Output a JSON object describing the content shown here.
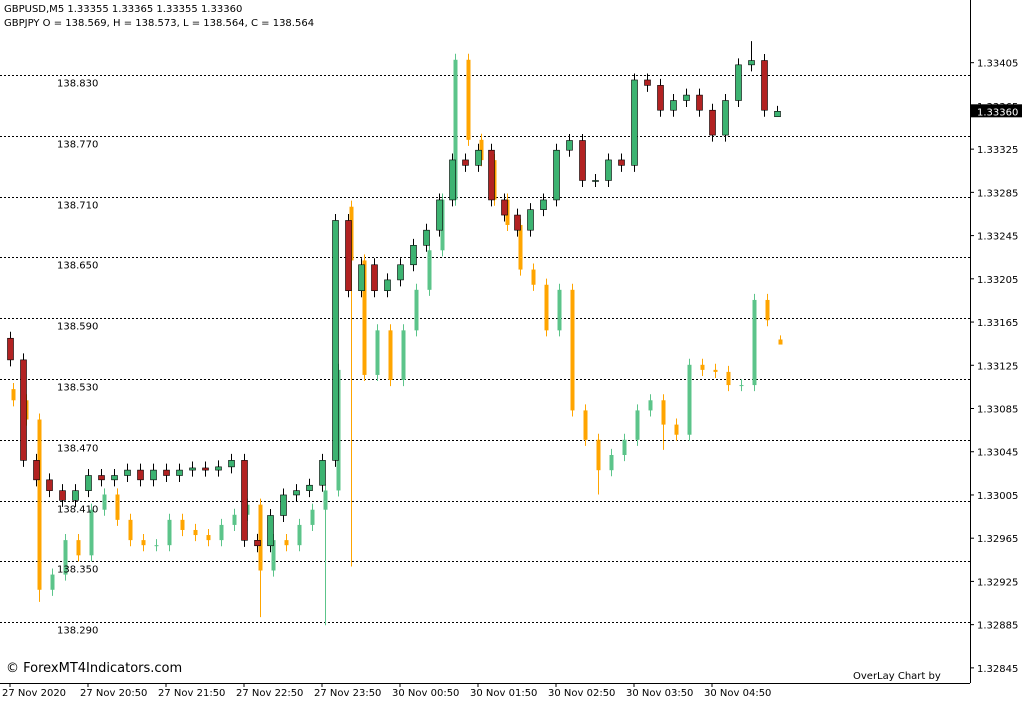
{
  "chart_data": {
    "type": "candlestick",
    "title": "GBPUSD,M5  1.33355 1.33365 1.33355 1.33360",
    "subtitle": "GBPJPY O = 138.569, H = 138.573, L = 138.564, C = 138.564",
    "credit": "© ForexMT4Indicators.com",
    "indicator": "OverLay Chart by",
    "current_price": {
      "value": 1.3336,
      "label": "1.33360"
    },
    "categories": [
      "27 Nov 2020",
      null,
      null,
      null,
      null,
      null,
      "27 Nov 20:50",
      null,
      null,
      null,
      null,
      null,
      "27 Nov 21:50",
      null,
      null,
      null,
      null,
      null,
      "27 Nov 22:50",
      null,
      null,
      null,
      null,
      null,
      "27 Nov 23:50",
      null,
      null,
      null,
      null,
      null,
      "30 Nov 00:50",
      null,
      null,
      null,
      null,
      null,
      "30 Nov 01:50",
      null,
      null,
      null,
      null,
      null,
      "30 Nov 02:50",
      null,
      null,
      null,
      null,
      null,
      "30 Nov 03:50",
      null,
      null,
      null,
      null,
      null,
      "30 Nov 04:50",
      null,
      null,
      null,
      null,
      null
    ],
    "ylim": [
      1.32831,
      1.33463
    ],
    "yticks": [
      1.33405,
      1.33365,
      1.33325,
      1.33285,
      1.33245,
      1.33205,
      1.33165,
      1.33125,
      1.33085,
      1.33045,
      1.33005,
      1.32965,
      1.32925,
      1.32885,
      1.32845
    ],
    "y2lim": [
      138.23,
      138.904
    ],
    "y2ticks": [
      {
        "value": 138.83,
        "label": "138.830"
      },
      {
        "value": 138.77,
        "label": "138.770"
      },
      {
        "value": 138.71,
        "label": "138.710"
      },
      {
        "value": 138.65,
        "label": "138.650"
      },
      {
        "value": 138.59,
        "label": "138.590"
      },
      {
        "value": 138.53,
        "label": "138.530"
      },
      {
        "value": 138.47,
        "label": "138.470"
      },
      {
        "value": 138.41,
        "label": "138.410"
      },
      {
        "value": 138.35,
        "label": "138.350"
      },
      {
        "value": 138.29,
        "label": "138.290"
      }
    ],
    "series": [
      {
        "up_color": "#3cb371",
        "down_color": "#b22222",
        "open": [
          1.3315,
          1.3313,
          1.33037,
          1.33019,
          1.33009,
          1.33,
          1.33009,
          1.33023,
          1.33019,
          1.33023,
          1.33028,
          1.33019,
          1.33028,
          1.33023,
          1.33028,
          1.3303,
          1.33028,
          1.33031,
          1.33037,
          1.32963,
          1.32958,
          1.32986,
          1.33005,
          1.33009,
          1.33014,
          1.33037,
          1.33259,
          1.33194,
          1.33218,
          1.33194,
          1.33204,
          1.33218,
          1.33236,
          1.3325,
          1.33278,
          1.33315,
          1.3331,
          1.33324,
          1.33278,
          1.33264,
          1.3325,
          1.33269,
          1.33278,
          1.33324,
          1.33333,
          1.33296,
          1.33296,
          1.33315,
          1.3331,
          1.33389,
          1.33384,
          1.33361,
          1.3337,
          1.33375,
          1.33361,
          1.33338,
          1.3337,
          1.33403,
          1.33407,
          1.33355
        ],
        "high": [
          1.33156,
          1.33136,
          1.33043,
          1.33025,
          1.33015,
          1.33015,
          1.33029,
          1.33029,
          1.33029,
          1.33034,
          1.33034,
          1.33034,
          1.33034,
          1.33034,
          1.33036,
          1.33036,
          1.33037,
          1.33043,
          1.33043,
          1.32969,
          1.32992,
          1.33011,
          1.33015,
          1.3302,
          1.33043,
          1.33265,
          1.33265,
          1.33224,
          1.33224,
          1.3321,
          1.33224,
          1.33242,
          1.33256,
          1.33284,
          1.33321,
          1.33321,
          1.3333,
          1.3333,
          1.33284,
          1.3327,
          1.33275,
          1.33284,
          1.3333,
          1.33339,
          1.33339,
          1.33302,
          1.33321,
          1.33321,
          1.33395,
          1.33395,
          1.3339,
          1.33376,
          1.33381,
          1.33381,
          1.33367,
          1.33376,
          1.33409,
          1.33425,
          1.33413,
          1.33365
        ],
        "low": [
          1.33124,
          1.33031,
          1.33013,
          1.33003,
          1.32994,
          1.32994,
          1.33003,
          1.33013,
          1.33013,
          1.33017,
          1.33013,
          1.33013,
          1.33017,
          1.33017,
          1.33022,
          1.33022,
          1.33022,
          1.33025,
          1.32957,
          1.32952,
          1.32952,
          1.3298,
          1.32999,
          1.33003,
          1.33008,
          1.33031,
          1.33188,
          1.33188,
          1.33188,
          1.33188,
          1.33198,
          1.33212,
          1.3323,
          1.33244,
          1.33272,
          1.33304,
          1.33304,
          1.33272,
          1.33258,
          1.33244,
          1.33244,
          1.33263,
          1.33272,
          1.33318,
          1.3329,
          1.3329,
          1.3329,
          1.33304,
          1.33304,
          1.33378,
          1.33355,
          1.33355,
          1.33364,
          1.33355,
          1.33332,
          1.33332,
          1.33364,
          1.33397,
          1.33355,
          1.33355
        ],
        "close": [
          1.3313,
          1.33037,
          1.33019,
          1.33009,
          1.33,
          1.33009,
          1.33023,
          1.33019,
          1.33023,
          1.33028,
          1.33019,
          1.33028,
          1.33023,
          1.33028,
          1.3303,
          1.33028,
          1.33031,
          1.33037,
          1.32963,
          1.32958,
          1.32986,
          1.33005,
          1.33009,
          1.33014,
          1.33037,
          1.33259,
          1.33194,
          1.33218,
          1.33194,
          1.33204,
          1.33218,
          1.33236,
          1.3325,
          1.33278,
          1.33315,
          1.3331,
          1.33324,
          1.33278,
          1.33264,
          1.3325,
          1.33269,
          1.33278,
          1.33324,
          1.33333,
          1.33296,
          1.33296,
          1.33315,
          1.3331,
          1.33389,
          1.33384,
          1.33361,
          1.3337,
          1.33375,
          1.33361,
          1.33338,
          1.3337,
          1.33403,
          1.33407,
          1.33361,
          1.3336
        ]
      },
      {
        "axis": "y2",
        "up_color": "#5cc48a",
        "down_color": "#ffa500",
        "open": [
          138.52,
          138.509,
          138.49,
          138.322,
          138.337,
          138.371,
          138.356,
          138.401,
          138.416,
          138.391,
          138.371,
          138.366,
          138.366,
          138.391,
          138.381,
          138.376,
          138.371,
          138.386,
          138.396,
          138.406,
          138.341,
          138.371,
          138.366,
          138.386,
          138.401,
          138.42,
          138.7,
          138.647,
          138.534,
          138.578,
          138.529,
          138.578,
          138.618,
          138.657,
          138.707,
          138.845,
          138.766,
          138.746,
          138.707,
          138.682,
          138.638,
          138.623,
          138.578,
          138.618,
          138.499,
          138.47,
          138.44,
          138.455,
          138.47,
          138.499,
          138.509,
          138.485,
          138.475,
          138.544,
          138.539,
          138.537,
          138.524,
          138.524,
          138.608,
          138.569
        ],
        "high": [
          138.526,
          138.515,
          138.496,
          138.343,
          138.377,
          138.377,
          138.407,
          138.422,
          138.422,
          138.397,
          138.377,
          138.372,
          138.397,
          138.397,
          138.387,
          138.382,
          138.392,
          138.402,
          138.412,
          138.412,
          138.377,
          138.377,
          138.392,
          138.407,
          138.426,
          138.545,
          138.706,
          138.653,
          138.584,
          138.584,
          138.584,
          138.624,
          138.663,
          138.713,
          138.851,
          138.851,
          138.772,
          138.752,
          138.713,
          138.688,
          138.644,
          138.629,
          138.624,
          138.624,
          138.505,
          138.476,
          138.461,
          138.476,
          138.505,
          138.515,
          138.515,
          138.491,
          138.55,
          138.55,
          138.545,
          138.543,
          138.53,
          138.614,
          138.614,
          138.573
        ],
        "low": [
          138.503,
          138.484,
          138.31,
          138.316,
          138.331,
          138.35,
          138.35,
          138.395,
          138.385,
          138.365,
          138.36,
          138.36,
          138.36,
          138.375,
          138.37,
          138.365,
          138.365,
          138.38,
          138.39,
          138.295,
          138.335,
          138.36,
          138.36,
          138.38,
          138.287,
          138.414,
          138.345,
          138.528,
          138.528,
          138.523,
          138.523,
          138.572,
          138.612,
          138.651,
          138.701,
          138.76,
          138.74,
          138.701,
          138.676,
          138.632,
          138.617,
          138.572,
          138.572,
          138.493,
          138.464,
          138.416,
          138.434,
          138.449,
          138.464,
          138.493,
          138.46,
          138.469,
          138.469,
          138.533,
          138.531,
          138.518,
          138.518,
          138.518,
          138.582,
          138.564
        ],
        "close": [
          138.509,
          138.49,
          138.322,
          138.337,
          138.371,
          138.356,
          138.401,
          138.416,
          138.391,
          138.371,
          138.366,
          138.366,
          138.391,
          138.381,
          138.376,
          138.371,
          138.386,
          138.396,
          138.406,
          138.341,
          138.371,
          138.366,
          138.386,
          138.401,
          138.42,
          138.539,
          138.647,
          138.534,
          138.578,
          138.529,
          138.578,
          138.618,
          138.657,
          138.707,
          138.845,
          138.766,
          138.746,
          138.707,
          138.682,
          138.638,
          138.623,
          138.578,
          138.618,
          138.499,
          138.47,
          138.44,
          138.455,
          138.47,
          138.499,
          138.509,
          138.485,
          138.475,
          138.544,
          138.539,
          138.537,
          138.524,
          138.524,
          138.608,
          138.588,
          138.564
        ]
      }
    ]
  }
}
